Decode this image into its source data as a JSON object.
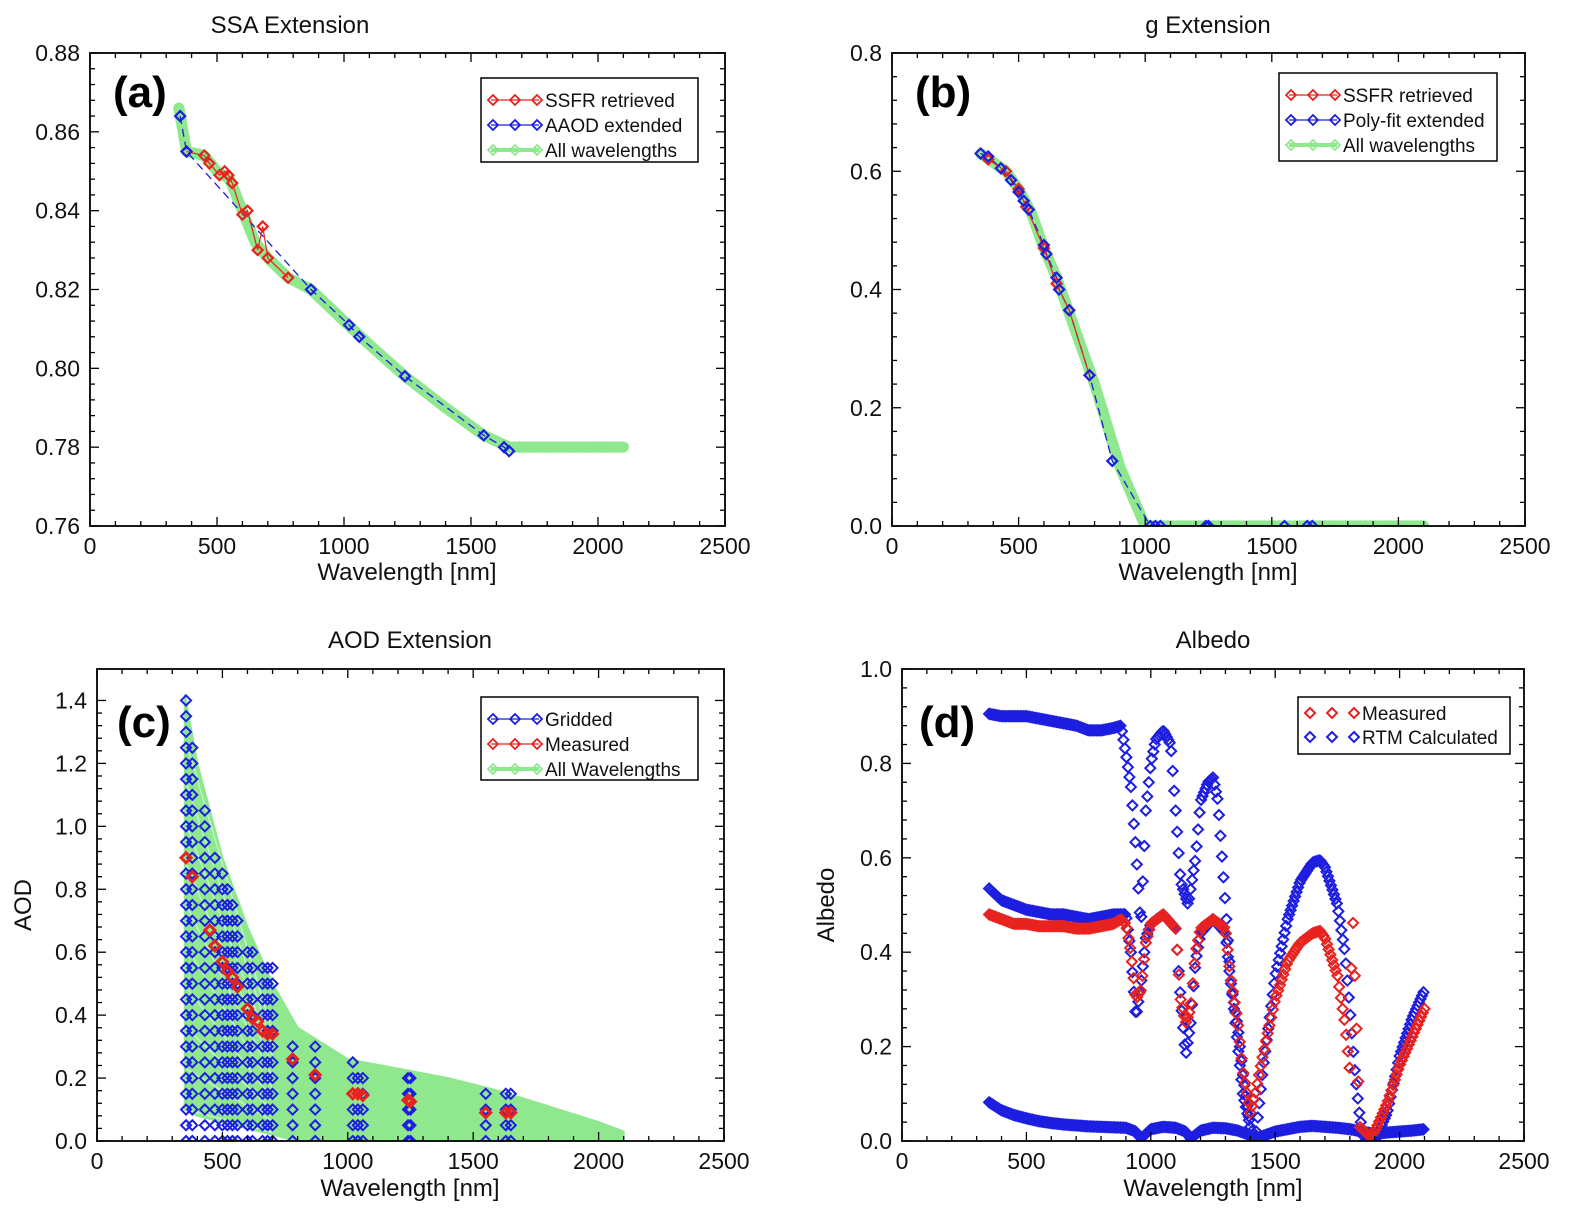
{
  "colors": {
    "red": "#e8231f",
    "blue": "#1d1ee0",
    "green": "#8fe88d",
    "black": "#000000"
  },
  "chart_data": [
    {
      "id": "a",
      "type": "line",
      "panel_label": "(a)",
      "title": "SSA Extension",
      "xlabel": "Wavelength [nm]",
      "ylabel": "",
      "xlim": [
        0,
        2500
      ],
      "ylim": [
        0.76,
        0.88
      ],
      "xticks": [
        0,
        500,
        1000,
        1500,
        2000,
        2500
      ],
      "yticks": [
        0.76,
        0.78,
        0.8,
        0.82,
        0.84,
        0.86,
        0.88
      ],
      "ytick_labels": [
        "0.76",
        "0.78",
        "0.80",
        "0.82",
        "0.84",
        "0.86",
        "0.88"
      ],
      "legend": [
        "SSFR retrieved",
        "AAOD extended",
        "All wavelengths"
      ],
      "series": [
        {
          "name": "SSFR retrieved",
          "style": "red-diamond",
          "x": [
            380,
            450,
            470,
            510,
            530,
            545,
            560,
            600,
            620,
            660,
            680,
            700,
            780
          ],
          "y": [
            0.855,
            0.854,
            0.852,
            0.849,
            0.85,
            0.849,
            0.847,
            0.839,
            0.84,
            0.83,
            0.836,
            0.828,
            0.823
          ]
        },
        {
          "name": "AAOD extended",
          "style": "blue-diamond-dashed",
          "x": [
            355,
            380,
            870,
            1020,
            1060,
            1240,
            1550,
            1630,
            1650
          ],
          "y": [
            0.864,
            0.855,
            0.82,
            0.811,
            0.808,
            0.798,
            0.783,
            0.78,
            0.779
          ]
        },
        {
          "name": "All wavelengths",
          "style": "green-band",
          "x": [
            350,
            380,
            450,
            500,
            550,
            600,
            650,
            700,
            780,
            870,
            1000,
            1100,
            1240,
            1400,
            1550,
            1650,
            1800,
            2000,
            2100
          ],
          "y": [
            0.866,
            0.855,
            0.854,
            0.85,
            0.848,
            0.84,
            0.832,
            0.828,
            0.823,
            0.82,
            0.812,
            0.806,
            0.798,
            0.79,
            0.783,
            0.78,
            0.78,
            0.78,
            0.78
          ]
        }
      ]
    },
    {
      "id": "b",
      "type": "line",
      "panel_label": "(b)",
      "title": "g Extension",
      "xlabel": "Wavelength [nm]",
      "ylabel": "",
      "xlim": [
        0,
        2500
      ],
      "ylim": [
        0,
        0.8
      ],
      "xticks": [
        0,
        500,
        1000,
        1500,
        2000,
        2500
      ],
      "yticks": [
        0,
        0.2,
        0.4,
        0.6,
        0.8
      ],
      "ytick_labels": [
        "0.0",
        "0.2",
        "0.4",
        "0.6",
        "0.8"
      ],
      "legend": [
        "SSFR retrieved",
        "Poly-fit extended",
        "All wavelengths"
      ],
      "series": [
        {
          "name": "SSFR retrieved",
          "style": "red-diamond",
          "x": [
            380,
            450,
            500,
            530,
            600,
            650,
            700,
            780
          ],
          "y": [
            0.62,
            0.6,
            0.57,
            0.54,
            0.47,
            0.41,
            0.365,
            0.255
          ]
        },
        {
          "name": "Poly-fit extended",
          "style": "blue-diamond-dashed",
          "x": [
            350,
            380,
            430,
            470,
            500,
            520,
            540,
            600,
            610,
            650,
            660,
            700,
            780,
            870,
            1020,
            1040,
            1060,
            1240,
            1250,
            1550,
            1640,
            1660
          ],
          "y": [
            0.63,
            0.625,
            0.605,
            0.585,
            0.565,
            0.55,
            0.535,
            0.475,
            0.46,
            0.42,
            0.4,
            0.365,
            0.255,
            0.11,
            0.0,
            0.0,
            0.0,
            0.0,
            0.0,
            0.0,
            0.0,
            0.0
          ]
        },
        {
          "name": "All wavelengths",
          "style": "green-band",
          "x": [
            350,
            400,
            450,
            500,
            550,
            600,
            650,
            700,
            750,
            800,
            850,
            900,
            950,
            1000,
            1050,
            1200,
            1400,
            1600,
            1800,
            2000,
            2100
          ],
          "y": [
            0.63,
            0.615,
            0.6,
            0.57,
            0.53,
            0.47,
            0.42,
            0.36,
            0.3,
            0.24,
            0.17,
            0.1,
            0.05,
            0.0,
            0.0,
            0.0,
            0.0,
            0.0,
            0.0,
            0.0,
            0.0
          ]
        }
      ]
    },
    {
      "id": "c",
      "type": "scatter",
      "panel_label": "(c)",
      "title": "AOD Extension",
      "xlabel": "Wavelength [nm]",
      "ylabel": "AOD",
      "xlim": [
        0,
        2500
      ],
      "ylim": [
        0,
        1.5
      ],
      "xticks": [
        0,
        500,
        1000,
        1500,
        2000,
        2500
      ],
      "yticks": [
        0,
        0.2,
        0.4,
        0.6,
        0.8,
        1.0,
        1.2,
        1.4
      ],
      "ytick_labels": [
        "0.0",
        "0.2",
        "0.4",
        "0.6",
        "0.8",
        "1.0",
        "1.2",
        "1.4"
      ],
      "legend": [
        "Gridded",
        "Measured",
        "All Wavelengths"
      ],
      "series": [
        {
          "name": "Gridded",
          "style": "blue-diamond-columns",
          "x": [
            355,
            380,
            430,
            470,
            500,
            520,
            540,
            560,
            600,
            620,
            660,
            680,
            700,
            780,
            870,
            1020,
            1040,
            1060,
            1240,
            1250,
            1550,
            1630,
            1650
          ],
          "top": [
            1.4,
            1.27,
            1.05,
            0.92,
            0.85,
            0.8,
            0.78,
            0.72,
            0.64,
            0.62,
            0.57,
            0.55,
            0.55,
            0.33,
            0.33,
            0.25,
            0.24,
            0.24,
            0.21,
            0.21,
            0.15,
            0.16,
            0.16
          ]
        },
        {
          "name": "Measured",
          "style": "red-diamond",
          "x": [
            355,
            380,
            450,
            470,
            500,
            520,
            540,
            560,
            600,
            620,
            640,
            660,
            680,
            700,
            780,
            870,
            1020,
            1040,
            1060,
            1240,
            1250,
            1550,
            1630,
            1650
          ],
          "y": [
            0.9,
            0.84,
            0.67,
            0.62,
            0.57,
            0.54,
            0.52,
            0.49,
            0.42,
            0.39,
            0.38,
            0.35,
            0.34,
            0.34,
            0.26,
            0.21,
            0.15,
            0.15,
            0.145,
            0.13,
            0.125,
            0.09,
            0.09,
            0.09
          ]
        },
        {
          "name": "All Wavelengths",
          "style": "green-fan",
          "x": [
            350,
            400,
            500,
            600,
            700,
            800,
            1000,
            1200,
            1400,
            1600,
            1800,
            2000,
            2100
          ],
          "top": [
            1.42,
            1.2,
            0.9,
            0.68,
            0.5,
            0.36,
            0.26,
            0.23,
            0.2,
            0.16,
            0.11,
            0.06,
            0.03
          ],
          "bottom": [
            0.1,
            0.08,
            0.06,
            0.04,
            0.02,
            0.0,
            0.0,
            0.0,
            0.0,
            0.0,
            0.0,
            0.0,
            0.0
          ]
        }
      ]
    },
    {
      "id": "d",
      "type": "scatter",
      "panel_label": "(d)",
      "title": "Albedo",
      "xlabel": "Wavelength [nm]",
      "ylabel": "Albedo",
      "xlim": [
        0,
        2500
      ],
      "ylim": [
        0,
        1.0
      ],
      "xticks": [
        0,
        500,
        1000,
        1500,
        2000,
        2500
      ],
      "yticks": [
        0,
        0.2,
        0.4,
        0.6,
        0.8,
        1.0
      ],
      "ytick_labels": [
        "0.0",
        "0.2",
        "0.4",
        "0.6",
        "0.8",
        "1.0"
      ],
      "legend": [
        "Measured",
        "RTM Calculated"
      ],
      "series": [
        {
          "name": "RTM Calculated (upper)",
          "style": "blue-diamond-dense",
          "x": [
            350,
            400,
            450,
            500,
            550,
            600,
            650,
            700,
            750,
            800,
            850,
            880,
            900,
            920,
            940,
            960,
            980,
            1000,
            1020,
            1050,
            1080,
            1100,
            1120,
            1150,
            1180,
            1200,
            1230,
            1250,
            1270,
            1300,
            1320,
            1350,
            1370,
            1400
          ],
          "y": [
            0.905,
            0.9,
            0.9,
            0.9,
            0.895,
            0.89,
            0.885,
            0.88,
            0.87,
            0.87,
            0.875,
            0.88,
            0.82,
            0.75,
            0.62,
            0.45,
            0.7,
            0.8,
            0.85,
            0.87,
            0.84,
            0.7,
            0.55,
            0.5,
            0.6,
            0.72,
            0.76,
            0.77,
            0.72,
            0.5,
            0.35,
            0.2,
            0.1,
            0.03
          ]
        },
        {
          "name": "RTM Calculated (middle)",
          "style": "blue-diamond-dense",
          "x": [
            350,
            400,
            450,
            500,
            550,
            600,
            650,
            700,
            750,
            800,
            850,
            900,
            920,
            940,
            960,
            980,
            1000,
            1050,
            1100,
            1120,
            1140,
            1160,
            1180,
            1200,
            1250,
            1300,
            1320,
            1350,
            1370,
            1400,
            1420,
            1450,
            1500,
            1550,
            1600,
            1650,
            1680,
            1700,
            1750,
            1780,
            1800,
            1820,
            1840,
            1860,
            1900,
            1950,
            2000,
            2050,
            2100
          ],
          "y": [
            0.535,
            0.51,
            0.5,
            0.49,
            0.485,
            0.48,
            0.48,
            0.475,
            0.47,
            0.475,
            0.48,
            0.48,
            0.4,
            0.26,
            0.33,
            0.43,
            0.46,
            0.48,
            0.45,
            0.3,
            0.18,
            0.25,
            0.38,
            0.44,
            0.47,
            0.44,
            0.34,
            0.24,
            0.14,
            0.03,
            0.0,
            0.15,
            0.35,
            0.47,
            0.55,
            0.59,
            0.595,
            0.58,
            0.5,
            0.4,
            0.28,
            0.15,
            0.05,
            0.0,
            0.0,
            0.06,
            0.18,
            0.26,
            0.32
          ]
        },
        {
          "name": "RTM Calculated (lower)",
          "style": "blue-diamond-dense",
          "x": [
            350,
            400,
            450,
            500,
            550,
            600,
            650,
            700,
            750,
            800,
            850,
            900,
            940,
            960,
            1000,
            1050,
            1100,
            1140,
            1160,
            1200,
            1250,
            1300,
            1350,
            1400,
            1420,
            1500,
            1550,
            1600,
            1650,
            1700,
            1750,
            1800,
            1850,
            1900,
            1950,
            2000,
            2050,
            2100
          ],
          "y": [
            0.082,
            0.065,
            0.055,
            0.048,
            0.042,
            0.038,
            0.035,
            0.033,
            0.031,
            0.03,
            0.029,
            0.028,
            0.02,
            0.005,
            0.025,
            0.03,
            0.028,
            0.02,
            0.005,
            0.022,
            0.028,
            0.027,
            0.022,
            0.012,
            0.005,
            0.02,
            0.025,
            0.03,
            0.032,
            0.03,
            0.028,
            0.025,
            0.02,
            0.015,
            0.018,
            0.02,
            0.022,
            0.025
          ]
        },
        {
          "name": "Measured",
          "style": "red-diamond-dense",
          "x": [
            350,
            400,
            450,
            500,
            550,
            600,
            650,
            700,
            750,
            800,
            850,
            880,
            900,
            920,
            940,
            960,
            980,
            1000,
            1050,
            1100,
            1120,
            1140,
            1160,
            1180,
            1200,
            1250,
            1300,
            1320,
            1350,
            1370,
            1400,
            1420,
            1450,
            1500,
            1550,
            1600,
            1650,
            1680,
            1700,
            1750,
            1780,
            1800,
            1810,
            1840,
            1860,
            1880,
            1900,
            1950,
            2000,
            2050,
            2100
          ],
          "y": [
            0.48,
            0.47,
            0.46,
            0.46,
            0.455,
            0.455,
            0.455,
            0.45,
            0.45,
            0.455,
            0.46,
            0.47,
            0.46,
            0.4,
            0.3,
            0.32,
            0.42,
            0.46,
            0.48,
            0.45,
            0.3,
            0.25,
            0.28,
            0.4,
            0.45,
            0.47,
            0.45,
            0.35,
            0.25,
            0.15,
            0.06,
            0.1,
            0.18,
            0.3,
            0.38,
            0.42,
            0.44,
            0.445,
            0.43,
            0.35,
            0.25,
            0.15,
            0.51,
            0.03,
            0.02,
            0.01,
            0.02,
            0.08,
            0.16,
            0.22,
            0.28
          ]
        }
      ]
    }
  ]
}
